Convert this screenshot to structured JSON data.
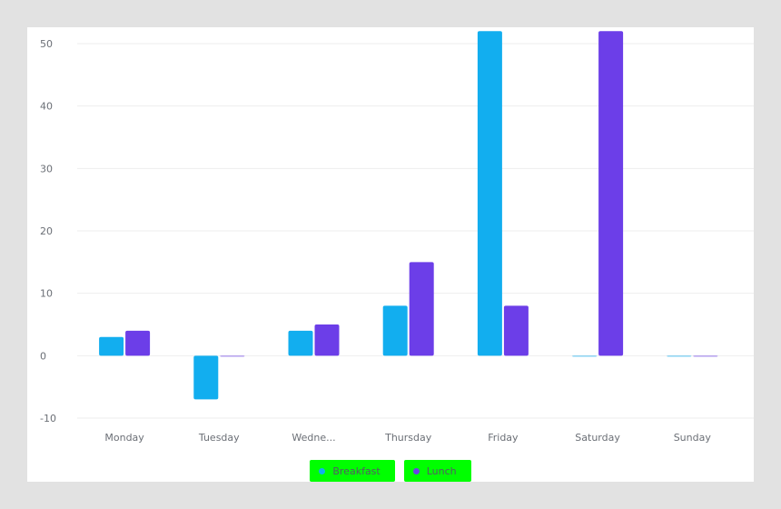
{
  "chart_data": {
    "type": "bar",
    "categories": [
      "Monday",
      "Tuesday",
      "Wedne...",
      "Thursday",
      "Friday",
      "Saturday",
      "Sunday"
    ],
    "series": [
      {
        "name": "Breakfast",
        "color": "#12aeef",
        "values": [
          3,
          -7,
          4,
          8,
          52,
          0,
          0
        ]
      },
      {
        "name": "Lunch",
        "color": "#6c3ee8",
        "values": [
          4,
          0,
          5,
          15,
          8,
          52,
          0
        ]
      }
    ],
    "ylim": [
      -10,
      50
    ],
    "yticks": [
      -10,
      0,
      10,
      20,
      30,
      40,
      50
    ],
    "grid": true,
    "legend": "bottom-center"
  }
}
